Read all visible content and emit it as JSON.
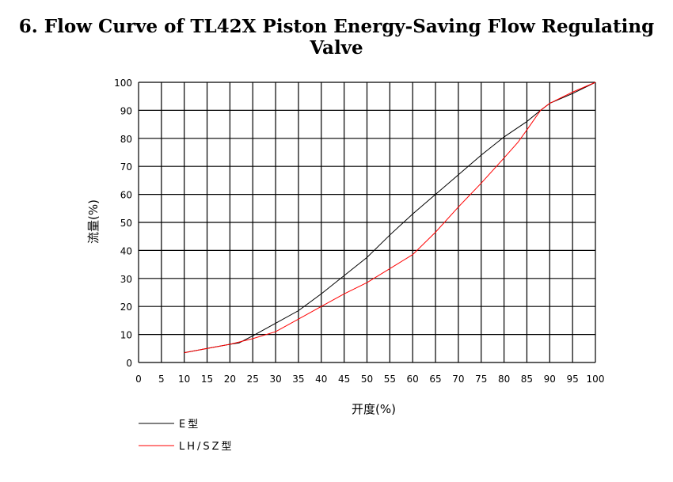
{
  "chart_data": {
    "type": "line",
    "title": "6. Flow Curve of TL42X Piston Energy-Saving Flow Regulating Valve",
    "xlabel": "开度(%)",
    "ylabel": "流量(%)",
    "xlim": [
      0,
      100
    ],
    "ylim": [
      0,
      100
    ],
    "xticks": [
      0,
      5,
      10,
      15,
      20,
      25,
      30,
      35,
      40,
      45,
      50,
      55,
      60,
      65,
      70,
      75,
      80,
      85,
      90,
      95,
      100
    ],
    "yticks": [
      0,
      10,
      20,
      30,
      40,
      50,
      60,
      70,
      80,
      90,
      100
    ],
    "grid": true,
    "legend_position": "bottom-left",
    "series": [
      {
        "name": "E型",
        "color": "#000000",
        "x": [
          10,
          15,
          20,
          22,
          25,
          30,
          35,
          40,
          45,
          50,
          55,
          60,
          65,
          70,
          75,
          80,
          85,
          88,
          90,
          95,
          100
        ],
        "y": [
          3.5,
          5,
          6.5,
          7,
          9.5,
          14,
          18.5,
          24.5,
          31,
          37.5,
          45.5,
          53,
          60,
          67,
          74,
          80.5,
          86,
          90,
          92.5,
          96,
          100
        ]
      },
      {
        "name": "LH/SZ型",
        "color": "#ff0000",
        "x": [
          10,
          15,
          20,
          25,
          30,
          35,
          40,
          45,
          50,
          55,
          60,
          65,
          70,
          75,
          80,
          83,
          85,
          88,
          90,
          95,
          100
        ],
        "y": [
          3.5,
          5,
          6.5,
          8.5,
          11,
          15.5,
          20,
          24.5,
          28.5,
          33.5,
          38.5,
          46.5,
          55.5,
          64,
          73,
          78.5,
          83,
          90,
          92.5,
          96.5,
          100
        ]
      }
    ]
  }
}
